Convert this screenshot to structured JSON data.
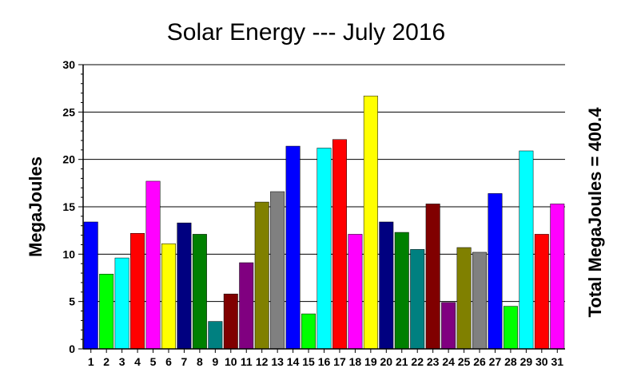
{
  "chart_data": {
    "type": "bar",
    "title": "Solar Energy --- July 2016",
    "ylabel": "MegaJoules",
    "right_label": "Total MegaJoules = 400.4",
    "xlabel": "",
    "ylim": [
      0,
      30
    ],
    "yticks": [
      0,
      5,
      10,
      15,
      20,
      25,
      30
    ],
    "grid": true,
    "categories": [
      "1",
      "2",
      "3",
      "4",
      "5",
      "6",
      "7",
      "8",
      "9",
      "10",
      "11",
      "12",
      "13",
      "14",
      "15",
      "16",
      "17",
      "18",
      "19",
      "20",
      "21",
      "22",
      "23",
      "24",
      "25",
      "26",
      "27",
      "28",
      "29",
      "30",
      "31"
    ],
    "values": [
      13.4,
      7.9,
      9.6,
      12.2,
      17.7,
      11.1,
      13.3,
      12.1,
      2.9,
      5.8,
      9.1,
      15.5,
      16.6,
      21.4,
      3.7,
      21.2,
      22.1,
      12.1,
      26.7,
      13.4,
      12.3,
      10.5,
      15.3,
      4.9,
      10.7,
      10.2,
      16.4,
      4.5,
      20.9,
      12.1,
      15.3
    ],
    "colors": [
      "#0000ff",
      "#00ff00",
      "#00ffff",
      "#ff0000",
      "#ff00ff",
      "#ffff00",
      "#000080",
      "#008000",
      "#008080",
      "#800000",
      "#800080",
      "#808000",
      "#808080",
      "#0000ff",
      "#00ff00",
      "#00ffff",
      "#ff0000",
      "#ff00ff",
      "#ffff00",
      "#000080",
      "#008000",
      "#008080",
      "#800000",
      "#800080",
      "#808000",
      "#808080",
      "#0000ff",
      "#00ff00",
      "#00ffff",
      "#ff0000",
      "#ff00ff"
    ]
  }
}
